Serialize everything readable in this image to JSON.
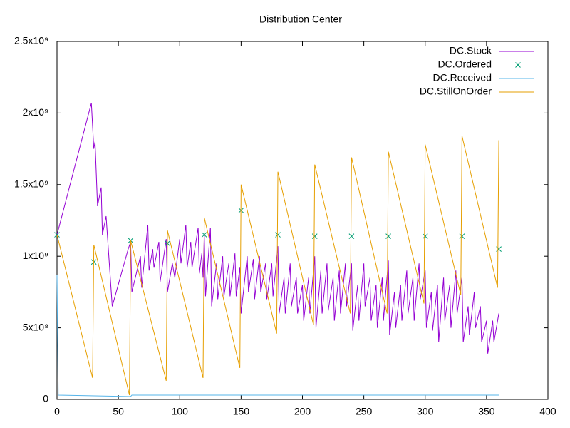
{
  "chart_data": {
    "type": "line",
    "title": "Distribution Center",
    "xlim": [
      0,
      400
    ],
    "xticks": [
      0,
      50,
      100,
      150,
      200,
      250,
      300,
      350,
      400
    ],
    "ylim": [
      0,
      2500000000
    ],
    "yticks": [
      0,
      {
        "value": 500000000,
        "label": "5x10⁸"
      },
      {
        "value": 1000000000,
        "label": "1x10⁹"
      },
      {
        "value": 1500000000,
        "label": "1.5x10⁹"
      },
      {
        "value": 2000000000,
        "label": "2x10⁹"
      },
      {
        "value": 2500000000,
        "label": "2.5x10⁹"
      }
    ],
    "legend": "top-right",
    "series": [
      {
        "name": "DC.Stock",
        "color": "#9400d3",
        "style": "lines",
        "x": [
          0,
          28,
          30,
          31,
          33,
          36,
          37,
          40,
          45,
          58,
          60,
          61,
          68,
          69,
          74,
          75,
          78,
          79,
          83,
          84,
          89,
          90,
          94,
          96,
          100,
          101,
          105,
          106,
          109,
          110,
          115,
          116,
          118,
          119,
          120,
          121,
          125,
          126,
          130,
          131,
          135,
          136,
          140,
          141,
          145,
          146,
          149,
          150,
          155,
          156,
          160,
          161,
          165,
          166,
          170,
          171,
          175,
          176,
          180,
          181,
          185,
          186,
          190,
          191,
          195,
          196,
          200,
          201,
          205,
          206,
          210,
          211,
          215,
          216,
          220,
          221,
          225,
          226,
          230,
          231,
          235,
          236,
          240,
          241,
          245,
          246,
          250,
          251,
          255,
          256,
          260,
          261,
          265,
          266,
          270,
          271,
          275,
          276,
          280,
          281,
          285,
          286,
          290,
          291,
          295,
          296,
          300,
          301,
          305,
          306,
          310,
          311,
          315,
          316,
          320,
          321,
          325,
          326,
          330,
          331,
          335,
          336,
          340,
          341,
          345,
          346,
          350,
          351,
          355,
          356,
          360
        ],
        "values": [
          1150000000,
          2070000000,
          1750000000,
          1800000000,
          1350000000,
          1480000000,
          1150000000,
          1280000000,
          650000000,
          1050000000,
          1100000000,
          750000000,
          1000000000,
          780000000,
          1220000000,
          900000000,
          1050000000,
          920000000,
          1100000000,
          820000000,
          1120000000,
          750000000,
          950000000,
          850000000,
          1120000000,
          950000000,
          1220000000,
          920000000,
          1100000000,
          920000000,
          1200000000,
          880000000,
          1020000000,
          850000000,
          1150000000,
          720000000,
          1200000000,
          650000000,
          950000000,
          700000000,
          1000000000,
          720000000,
          950000000,
          720000000,
          1020000000,
          720000000,
          920000000,
          600000000,
          1000000000,
          750000000,
          980000000,
          700000000,
          1000000000,
          750000000,
          950000000,
          700000000,
          950000000,
          720000000,
          1070000000,
          600000000,
          850000000,
          600000000,
          950000000,
          650000000,
          850000000,
          600000000,
          800000000,
          550000000,
          850000000,
          600000000,
          1000000000,
          500000000,
          900000000,
          600000000,
          950000000,
          620000000,
          850000000,
          550000000,
          900000000,
          600000000,
          950000000,
          650000000,
          950000000,
          480000000,
          800000000,
          550000000,
          950000000,
          650000000,
          850000000,
          550000000,
          800000000,
          500000000,
          850000000,
          550000000,
          970000000,
          450000000,
          750000000,
          500000000,
          800000000,
          550000000,
          900000000,
          600000000,
          850000000,
          550000000,
          950000000,
          700000000,
          900000000,
          500000000,
          750000000,
          480000000,
          800000000,
          400000000,
          850000000,
          550000000,
          800000000,
          500000000,
          900000000,
          600000000,
          850000000,
          400000000,
          650000000,
          450000000,
          750000000,
          500000000,
          650000000,
          400000000,
          550000000,
          320000000,
          550000000,
          400000000,
          600000000
        ]
      },
      {
        "name": "DC.Ordered",
        "color": "#009e73",
        "style": "points",
        "x": [
          0,
          30,
          60,
          90,
          120,
          150,
          180,
          210,
          240,
          270,
          300,
          330,
          360
        ],
        "values": [
          1150000000,
          960000000,
          1110000000,
          1090000000,
          1150000000,
          1320000000,
          1150000000,
          1140000000,
          1140000000,
          1140000000,
          1140000000,
          1140000000,
          1050000000
        ]
      },
      {
        "name": "DC.Received",
        "color": "#56b4e9",
        "style": "lines",
        "x": [
          0,
          1,
          60,
          61,
          120,
          180,
          240,
          300,
          360
        ],
        "values": [
          870000000,
          30000000,
          20000000,
          30000000,
          30000000,
          30000000,
          30000000,
          30000000,
          30000000
        ]
      },
      {
        "name": "DC.StillOnOrder",
        "color": "#e69f00",
        "style": "lines",
        "x": [
          0,
          29,
          30,
          59,
          60,
          89,
          90,
          119,
          120,
          149,
          150,
          179,
          180,
          209,
          210,
          239,
          240,
          269,
          270,
          299,
          300,
          329,
          330,
          359,
          360
        ],
        "values": [
          1150000000,
          150000000,
          1080000000,
          30000000,
          1110000000,
          130000000,
          1180000000,
          150000000,
          1270000000,
          220000000,
          1500000000,
          460000000,
          1590000000,
          520000000,
          1640000000,
          600000000,
          1690000000,
          600000000,
          1730000000,
          670000000,
          1780000000,
          730000000,
          1840000000,
          780000000,
          1810000000
        ]
      }
    ]
  }
}
